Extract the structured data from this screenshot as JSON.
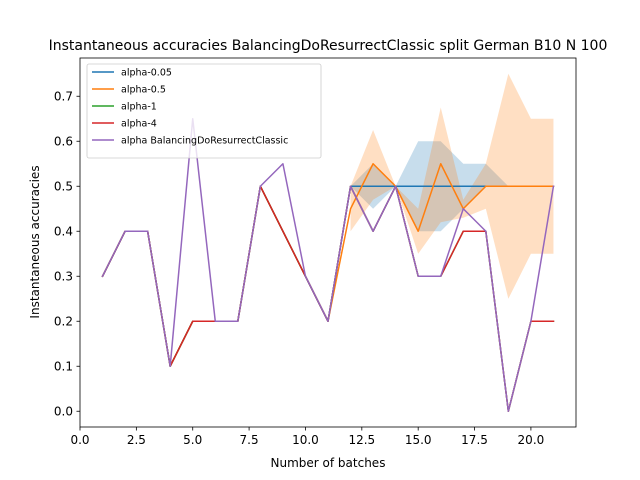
{
  "chart_data": {
    "type": "line",
    "title": "Instantaneous accuracies BalancingDoResurrectClassic split German B10 N 100",
    "xlabel": "Number of batches",
    "ylabel": "Instantaneous accuracies",
    "xlim": [
      0,
      22.0
    ],
    "ylim": [
      -0.035,
      0.785
    ],
    "xticks": [
      0.0,
      2.5,
      5.0,
      7.5,
      10.0,
      12.5,
      15.0,
      17.5,
      20.0
    ],
    "xtick_labels": [
      "0.0",
      "2.5",
      "5.0",
      "7.5",
      "10.0",
      "12.5",
      "15.0",
      "17.5",
      "20.0"
    ],
    "yticks": [
      0.0,
      0.1,
      0.2,
      0.3,
      0.4,
      0.5,
      0.6,
      0.7
    ],
    "ytick_labels": [
      "0.0",
      "0.1",
      "0.2",
      "0.3",
      "0.4",
      "0.5",
      "0.6",
      "0.7"
    ],
    "legend_position": "top-left",
    "grid": false,
    "x": [
      1,
      2,
      3,
      4,
      5,
      6,
      7,
      8,
      9,
      10,
      11,
      12,
      13,
      14,
      15,
      16,
      17,
      18,
      19,
      20,
      21
    ],
    "series": [
      {
        "name": "alpha-0.05",
        "color": "#1f77b4",
        "values": [
          0.3,
          0.4,
          0.4,
          0.1,
          0.2,
          0.2,
          0.2,
          0.5,
          0.4,
          0.3,
          0.2,
          0.5,
          0.5,
          0.5,
          0.5,
          0.5,
          0.5,
          0.5,
          0.5,
          0.5,
          0.5
        ],
        "band_low": [
          null,
          null,
          null,
          null,
          null,
          null,
          null,
          null,
          null,
          null,
          null,
          0.5,
          0.45,
          0.5,
          0.4,
          0.4,
          0.45,
          0.5,
          0.5,
          0.5,
          0.5
        ],
        "band_high": [
          null,
          null,
          null,
          null,
          null,
          null,
          null,
          null,
          null,
          null,
          null,
          0.5,
          0.55,
          0.5,
          0.6,
          0.6,
          0.55,
          0.55,
          0.5,
          0.5,
          0.5
        ]
      },
      {
        "name": "alpha-0.5",
        "color": "#ff7f0e",
        "values": [
          0.3,
          0.4,
          0.4,
          0.1,
          0.2,
          0.2,
          0.2,
          0.5,
          0.4,
          0.3,
          0.2,
          0.45,
          0.55,
          0.5,
          0.4,
          0.55,
          0.45,
          0.5,
          0.5,
          0.5,
          0.5
        ],
        "band_low": [
          null,
          null,
          null,
          null,
          null,
          null,
          null,
          null,
          null,
          null,
          null,
          0.4,
          0.47,
          0.5,
          0.35,
          0.42,
          0.43,
          0.45,
          0.25,
          0.35,
          0.35
        ],
        "band_high": [
          null,
          null,
          null,
          null,
          null,
          null,
          null,
          null,
          null,
          null,
          null,
          0.5,
          0.625,
          0.5,
          0.45,
          0.675,
          0.47,
          0.55,
          0.75,
          0.65,
          0.65
        ]
      },
      {
        "name": "alpha-1",
        "color": "#2ca02c",
        "values": [
          0.3,
          0.4,
          0.4,
          0.1,
          0.2,
          0.2,
          0.2,
          0.5,
          0.4,
          0.3,
          0.2,
          0.5,
          0.4,
          0.5,
          0.3,
          0.3,
          0.4,
          0.4,
          0.0,
          0.2,
          0.2
        ]
      },
      {
        "name": "alpha-4",
        "color": "#d62728",
        "values": [
          0.3,
          0.4,
          0.4,
          0.1,
          0.2,
          0.2,
          0.2,
          0.5,
          0.4,
          0.3,
          0.2,
          0.5,
          0.4,
          0.5,
          0.3,
          0.3,
          0.4,
          0.4,
          0.0,
          0.2,
          0.2
        ],
        "band_low": [
          null,
          null,
          null,
          null,
          null,
          null,
          null,
          null,
          null,
          null,
          null,
          null,
          null,
          null,
          null,
          null,
          null,
          null,
          0.0,
          0.2,
          0.2
        ],
        "band_high": [
          null,
          null,
          null,
          null,
          null,
          null,
          null,
          null,
          null,
          null,
          null,
          null,
          null,
          null,
          null,
          null,
          null,
          null,
          0.0,
          0.2,
          0.2
        ]
      },
      {
        "name": "alpha BalancingDoResurrectClassic",
        "color": "#9467bd",
        "values": [
          0.3,
          0.4,
          0.4,
          0.1,
          0.65,
          0.2,
          0.2,
          0.5,
          0.55,
          0.3,
          0.2,
          0.5,
          0.4,
          0.5,
          0.3,
          0.3,
          0.45,
          0.4,
          0.0,
          0.2,
          0.5
        ],
        "band_low": [
          null,
          null,
          null,
          null,
          0.6,
          null,
          null,
          null,
          0.525,
          null,
          null,
          null,
          null,
          null,
          null,
          null,
          null,
          null,
          null,
          null,
          null
        ],
        "band_high": [
          null,
          null,
          null,
          null,
          0.675,
          null,
          null,
          null,
          0.575,
          null,
          null,
          null,
          null,
          null,
          null,
          null,
          null,
          null,
          null,
          null,
          null
        ]
      }
    ]
  }
}
